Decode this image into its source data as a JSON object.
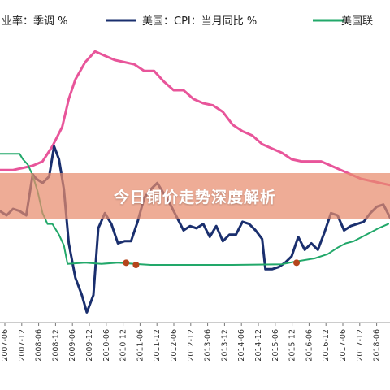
{
  "banner": {
    "text": "今日铜价走势深度解析"
  },
  "chart_data": {
    "type": "line",
    "legend": [
      {
        "label": "业率：季调 %",
        "color": "#e8559a"
      },
      {
        "label": "美国：CPI：当月同比 %",
        "color": "#1a2f6e"
      },
      {
        "label": "美国联",
        "color": "#22a86a"
      }
    ],
    "x_ticks": [
      "2007-06",
      "2007-12",
      "2008-06",
      "2008-12",
      "2009-06",
      "2009-12",
      "2010-06",
      "2010-12",
      "2011-06",
      "2011-12",
      "2012-06",
      "2012-12",
      "2013-06",
      "2013-12",
      "2014-06",
      "2014-12",
      "2015-06",
      "2015-12",
      "2016-06",
      "2016-12",
      "2017-06",
      "2017-12",
      "2018-06"
    ],
    "series": [
      {
        "name": "业率：季调 %",
        "color": "#e8559a",
        "x": [
          2006.9,
          2007.3,
          2007.6,
          2007.9,
          2008.2,
          2008.5,
          2008.8,
          2009.0,
          2009.2,
          2009.5,
          2009.8,
          2010.1,
          2010.4,
          2010.7,
          2011.0,
          2011.3,
          2011.6,
          2011.9,
          2012.2,
          2012.5,
          2012.8,
          2013.1,
          2013.4,
          2013.7,
          2014.0,
          2014.3,
          2014.6,
          2014.9,
          2015.2,
          2015.5,
          2015.8,
          2016.1,
          2016.4,
          2016.7,
          2017.0,
          2017.3,
          2017.6,
          2017.9,
          2018.2,
          2018.5,
          2018.8
        ],
        "values": [
          4.5,
          4.5,
          4.6,
          4.7,
          4.9,
          5.6,
          6.5,
          7.8,
          8.7,
          9.5,
          10.0,
          9.8,
          9.6,
          9.5,
          9.4,
          9.1,
          9.1,
          8.6,
          8.2,
          8.2,
          7.8,
          7.6,
          7.5,
          7.2,
          6.6,
          6.3,
          6.1,
          5.7,
          5.5,
          5.3,
          5.0,
          4.9,
          4.9,
          4.9,
          4.7,
          4.5,
          4.3,
          4.1,
          4.0,
          3.9,
          3.8
        ]
      },
      {
        "name": "美国：CPI：当月同比 %",
        "color": "#1a2f6e",
        "x": [
          2006.9,
          2007.1,
          2007.3,
          2007.5,
          2007.7,
          2007.9,
          2008.0,
          2008.2,
          2008.4,
          2008.55,
          2008.7,
          2008.85,
          2009.0,
          2009.2,
          2009.4,
          2009.55,
          2009.75,
          2009.9,
          2010.1,
          2010.3,
          2010.5,
          2010.7,
          2010.9,
          2011.1,
          2011.3,
          2011.5,
          2011.7,
          2011.9,
          2012.1,
          2012.3,
          2012.5,
          2012.7,
          2012.9,
          2013.1,
          2013.3,
          2013.5,
          2013.7,
          2013.9,
          2014.1,
          2014.3,
          2014.5,
          2014.7,
          2014.9,
          2015.0,
          2015.2,
          2015.4,
          2015.6,
          2015.8,
          2016.0,
          2016.2,
          2016.4,
          2016.6,
          2016.8,
          2017.0,
          2017.2,
          2017.4,
          2017.6,
          2017.8,
          2018.0,
          2018.2,
          2018.4,
          2018.6,
          2018.8
        ],
        "values": [
          2.6,
          2.4,
          2.7,
          2.6,
          2.4,
          4.3,
          4.1,
          3.9,
          4.2,
          5.6,
          5.0,
          3.6,
          1.1,
          -0.5,
          -1.3,
          -2.1,
          -1.3,
          1.8,
          2.5,
          2.0,
          1.1,
          1.2,
          1.2,
          2.1,
          3.2,
          3.6,
          3.9,
          3.4,
          2.9,
          2.3,
          1.7,
          1.9,
          1.8,
          2.0,
          1.4,
          1.9,
          1.2,
          1.5,
          1.5,
          2.1,
          2.0,
          1.7,
          1.3,
          -0.1,
          -0.1,
          0.0,
          0.2,
          0.5,
          1.4,
          0.8,
          1.1,
          0.8,
          1.6,
          2.5,
          2.4,
          1.7,
          1.9,
          2.0,
          2.1,
          2.5,
          2.8,
          2.9,
          2.3
        ]
      },
      {
        "name": "美国联",
        "color": "#22a86a",
        "x": [
          2006.9,
          2007.5,
          2007.6,
          2007.75,
          2007.9,
          2008.05,
          2008.2,
          2008.35,
          2008.5,
          2008.7,
          2008.85,
          2008.96,
          2009.5,
          2010.0,
          2010.5,
          2011.0,
          2011.5,
          2012.0,
          2013.0,
          2014.0,
          2015.0,
          2015.5,
          2015.9,
          2016.5,
          2016.9,
          2017.2,
          2017.45,
          2017.7,
          2017.95,
          2018.2,
          2018.45,
          2018.75
        ],
        "values": [
          5.25,
          5.25,
          5.0,
          4.75,
          4.25,
          3.5,
          2.5,
          2.0,
          2.0,
          1.5,
          1.0,
          0.15,
          0.2,
          0.15,
          0.2,
          0.15,
          0.1,
          0.1,
          0.1,
          0.1,
          0.12,
          0.13,
          0.25,
          0.4,
          0.6,
          0.9,
          1.1,
          1.2,
          1.4,
          1.6,
          1.8,
          2.0
        ]
      }
    ],
    "markers": [
      {
        "series": "美国联",
        "x": 2010.75,
        "y": 0.2,
        "color": "#b5451b"
      },
      {
        "series": "美国联",
        "x": 2011.05,
        "y": 0.1,
        "color": "#b5451b"
      },
      {
        "series": "美国联",
        "x": 2015.95,
        "y": 0.2,
        "color": "#b5451b"
      }
    ]
  }
}
